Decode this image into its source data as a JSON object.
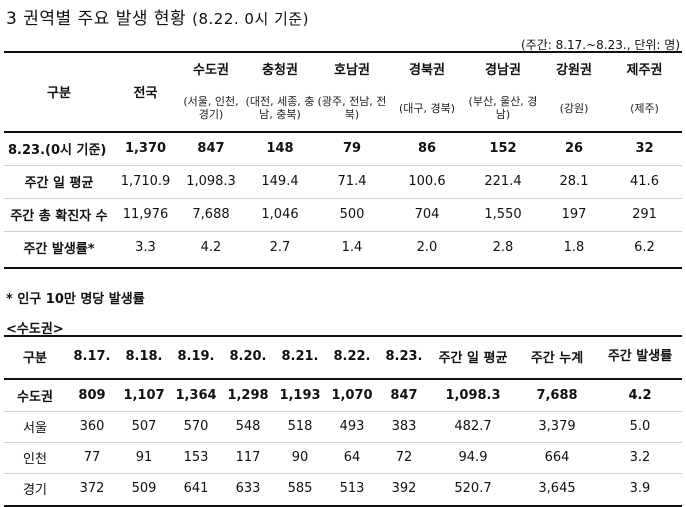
{
  "title": {
    "main": "3 권역별 주요 발생 현황",
    "sub": "(8.22. 0시 기준)"
  },
  "unit_note": "(주간: 8.17.~8.23., 단위: 명)",
  "table1": {
    "headers": [
      "구분",
      "전국",
      "수도권",
      "충청권",
      "호남권",
      "경북권",
      "경남권",
      "강원권",
      "제주권"
    ],
    "subheaders": [
      "(서울, 인천, 경기)",
      "(대전, 세종, 충남, 충북)",
      "(광주, 전남, 전북)",
      "(대구, 경북)",
      "(부산, 울산, 경남)",
      "(강원)",
      "(제주)"
    ],
    "rows": [
      [
        "8.23.(0시 기준)",
        "1,370",
        "847",
        "148",
        "79",
        "86",
        "152",
        "26",
        "32"
      ],
      [
        "주간 일 평균",
        "1,710.9",
        "1,098.3",
        "149.4",
        "71.4",
        "100.6",
        "221.4",
        "28.1",
        "41.6"
      ],
      [
        "주간 총 확진자 수",
        "11,976",
        "7,688",
        "1,046",
        "500",
        "704",
        "1,550",
        "197",
        "291"
      ],
      [
        "주간 발생률*",
        "3.3",
        "4.2",
        "2.7",
        "1.4",
        "2.0",
        "2.8",
        "1.8",
        "6.2"
      ]
    ]
  },
  "footnote": "* 인구 10만 명당 발생률",
  "section_label": "<수도권>",
  "table2": {
    "headers": [
      "구분",
      "8.17.",
      "8.18.",
      "8.19.",
      "8.20.",
      "8.21.",
      "8.22.",
      "8.23.",
      "주간 일 평균",
      "주간 누계",
      "주간 발생률"
    ],
    "rows": [
      [
        "수도권",
        "809",
        "1,107",
        "1,364",
        "1,298",
        "1,193",
        "1,070",
        "847",
        "1,098.3",
        "7,688",
        "4.2"
      ],
      [
        "서울",
        "360",
        "507",
        "570",
        "548",
        "518",
        "493",
        "383",
        "482.7",
        "3,379",
        "5.0"
      ],
      [
        "인천",
        "77",
        "91",
        "153",
        "117",
        "90",
        "64",
        "72",
        "94.9",
        "664",
        "3.2"
      ],
      [
        "경기",
        "372",
        "509",
        "641",
        "633",
        "585",
        "513",
        "392",
        "520.7",
        "3,645",
        "3.9"
      ]
    ]
  }
}
